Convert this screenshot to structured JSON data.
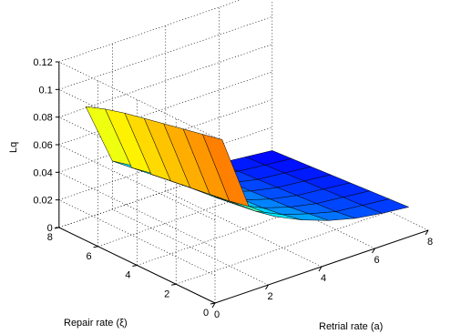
{
  "chart_data": {
    "type": "surface3d",
    "title": "",
    "xlabel": "Retrial rate (a)",
    "ylabel": "Repair rate (ξ)",
    "zlabel": "Lq",
    "xlim": [
      0,
      8
    ],
    "ylim": [
      0,
      8
    ],
    "zlim": [
      0,
      0.12
    ],
    "xticks": [
      "0",
      "2",
      "4",
      "6",
      "8"
    ],
    "yticks": [
      "0",
      "2",
      "4",
      "6",
      "8"
    ],
    "zticks": [
      "0",
      "0.02",
      "0.04",
      "0.06",
      "0.08",
      "0.1",
      "0.12"
    ],
    "grid": true,
    "x": [
      1,
      2,
      3,
      4,
      5,
      6,
      7,
      8
    ],
    "y": [
      1,
      2,
      3,
      4,
      5,
      6,
      7,
      8
    ],
    "z_rows": [
      [
        0.105,
        0.05,
        0.036,
        0.027,
        0.02,
        0.015,
        0.012,
        0.01
      ],
      [
        0.102,
        0.047,
        0.033,
        0.024,
        0.018,
        0.013,
        0.011,
        0.009
      ],
      [
        0.099,
        0.045,
        0.031,
        0.022,
        0.016,
        0.012,
        0.01,
        0.008
      ],
      [
        0.096,
        0.043,
        0.029,
        0.021,
        0.015,
        0.011,
        0.009,
        0.007
      ],
      [
        0.093,
        0.041,
        0.028,
        0.02,
        0.014,
        0.01,
        0.008,
        0.006
      ],
      [
        0.09,
        0.039,
        0.026,
        0.019,
        0.013,
        0.009,
        0.007,
        0.005
      ],
      [
        0.086,
        0.037,
        0.025,
        0.018,
        0.012,
        0.008,
        0.006,
        0.004
      ],
      [
        0.081,
        0.035,
        0.024,
        0.017,
        0.011,
        0.007,
        0.005,
        0.003
      ]
    ]
  }
}
